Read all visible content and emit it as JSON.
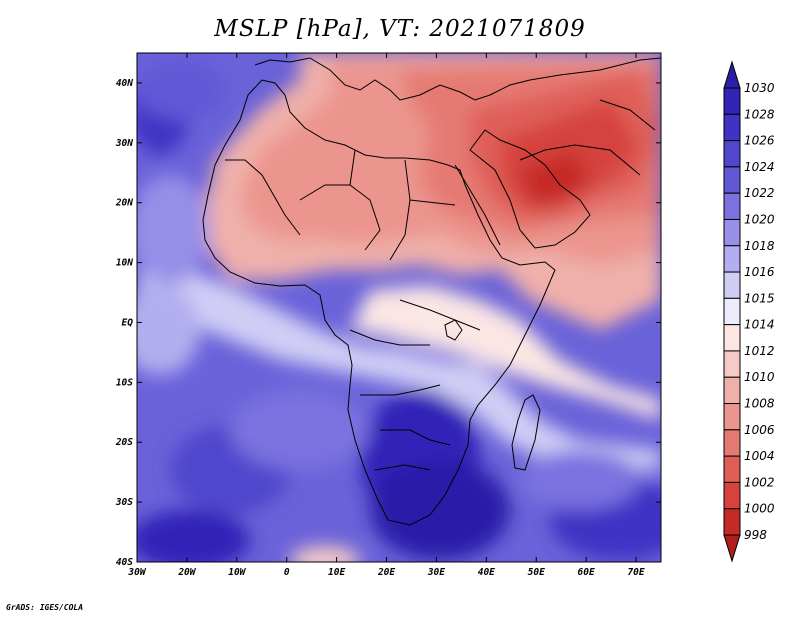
{
  "title": "MSLP [hPa], VT: 2021071809",
  "footer": "GrADS: IGES/COLA",
  "map": {
    "lon_labels": [
      "30W",
      "20W",
      "10W",
      "0",
      "10E",
      "20E",
      "30E",
      "40E",
      "50E",
      "60E",
      "70E"
    ],
    "lat_labels": [
      "40N",
      "30N",
      "20N",
      "10N",
      "EQ",
      "10S",
      "20S",
      "30S",
      "40S"
    ],
    "extent": {
      "lon_min": -30,
      "lon_max": 75,
      "lat_min": -40,
      "lat_max": 45
    }
  },
  "colorbar": {
    "levels": [
      "1030",
      "1028",
      "1026",
      "1024",
      "1022",
      "1020",
      "1018",
      "1016",
      "1015",
      "1014",
      "1012",
      "1010",
      "1008",
      "1006",
      "1004",
      "1002",
      "1000",
      "998"
    ],
    "colors": [
      "#2b1fa8",
      "#3324b8",
      "#3f33c4",
      "#5047cc",
      "#6158d6",
      "#7b72e0",
      "#978fe8",
      "#b3aeef",
      "#d0cdf5",
      "#ececfb",
      "#fbe6e4",
      "#f6cbc7",
      "#f0b0aa",
      "#eb958e",
      "#e57a73",
      "#df5f58",
      "#d6433d",
      "#c62a25",
      "#b01d1a"
    ]
  }
}
